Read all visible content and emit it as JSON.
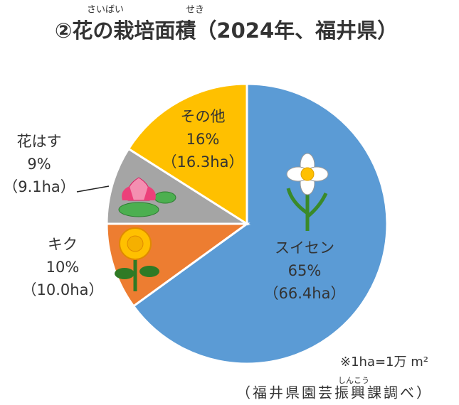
{
  "chart_data": {
    "type": "pie",
    "title": "②花の栽培面積（2024年、福井県）",
    "title_ruby_1": "さいばい",
    "title_ruby_2": "せき",
    "categories": [
      "スイセン",
      "キク",
      "花はす",
      "その他"
    ],
    "values": [
      65,
      10,
      9,
      16
    ],
    "value_labels": [
      "65%",
      "10%",
      "9%",
      "16%"
    ],
    "area_labels": [
      "（66.4ha）",
      "（10.0ha）",
      "（9.1ha）",
      "（16.3ha）"
    ],
    "colors": [
      "#5b9bd5",
      "#ed7d31",
      "#a5a5a5",
      "#ffc000"
    ],
    "note": "※1ha=1万 m²",
    "source": "（福井県園芸振興課調べ）",
    "source_ruby": "しんこう"
  }
}
